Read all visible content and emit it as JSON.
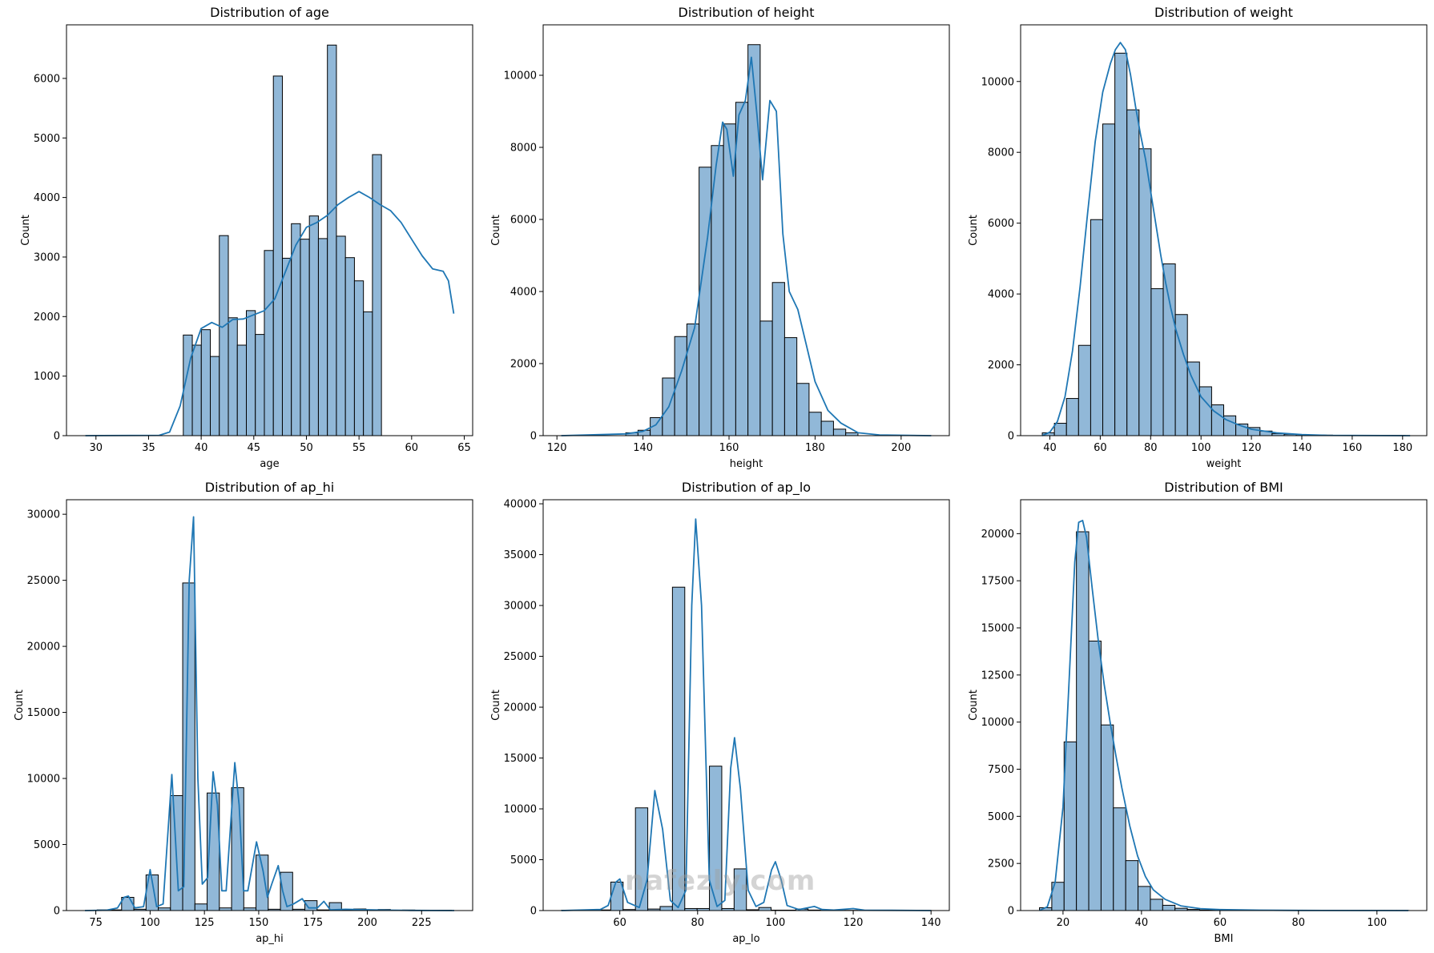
{
  "watermark": "nafezly.com",
  "colors": {
    "bar_fill": "#91b8d8",
    "bar_stroke": "#000000",
    "kde": "#1f77b4"
  },
  "chart_data": [
    {
      "type": "bar",
      "title": "Distribution of age",
      "xlabel": "age",
      "ylabel": "Count",
      "xlim": [
        27.2,
        65.8
      ],
      "ylim": [
        0,
        6900
      ],
      "xticks": [
        30,
        35,
        40,
        45,
        50,
        55,
        60,
        65
      ],
      "yticks": [
        0,
        1000,
        2000,
        3000,
        4000,
        5000,
        6000
      ],
      "bin_start": 38.3,
      "bin_width": 0.856,
      "values": [
        1690,
        1520,
        1780,
        1330,
        3360,
        1980,
        1520,
        2100,
        1700,
        3110,
        6040,
        2980,
        3560,
        3300,
        3690,
        3310,
        6560,
        3350,
        2990,
        2600,
        2080,
        4720
      ],
      "kde": [
        [
          29.0,
          0
        ],
        [
          36.0,
          5
        ],
        [
          37.0,
          60
        ],
        [
          38.0,
          500
        ],
        [
          39.0,
          1300
        ],
        [
          40.0,
          1800
        ],
        [
          41.0,
          1900
        ],
        [
          42.0,
          1820
        ],
        [
          43.0,
          1950
        ],
        [
          44.0,
          1960
        ],
        [
          45.0,
          2030
        ],
        [
          46.0,
          2100
        ],
        [
          47.0,
          2300
        ],
        [
          48.0,
          2750
        ],
        [
          49.0,
          3200
        ],
        [
          50.0,
          3500
        ],
        [
          51.0,
          3580
        ],
        [
          52.0,
          3700
        ],
        [
          53.0,
          3880
        ],
        [
          54.0,
          4000
        ],
        [
          55.0,
          4100
        ],
        [
          56.0,
          4000
        ],
        [
          57.0,
          3880
        ],
        [
          58.0,
          3780
        ],
        [
          59.0,
          3580
        ],
        [
          60.0,
          3300
        ],
        [
          61.0,
          3020
        ],
        [
          62.0,
          2800
        ],
        [
          63.0,
          2760
        ],
        [
          63.5,
          2600
        ],
        [
          64.0,
          2050
        ]
      ]
    },
    {
      "type": "bar",
      "title": "Distribution of height",
      "xlabel": "height",
      "ylabel": "Count",
      "xlim": [
        116.8,
        211.2
      ],
      "ylim": [
        0,
        11400
      ],
      "xticks": [
        120,
        140,
        160,
        180,
        200
      ],
      "yticks": [
        0,
        2000,
        4000,
        6000,
        8000,
        10000
      ],
      "bin_start": 136,
      "bin_width": 2.84,
      "values": [
        80,
        150,
        500,
        1600,
        2750,
        3100,
        7450,
        8050,
        8650,
        9250,
        10850,
        3180,
        4250,
        2720,
        1450,
        650,
        400,
        180,
        80
      ],
      "kde": [
        [
          121,
          0
        ],
        [
          136,
          50
        ],
        [
          140,
          120
        ],
        [
          143,
          300
        ],
        [
          146,
          800
        ],
        [
          149,
          1800
        ],
        [
          152,
          3000
        ],
        [
          155,
          5500
        ],
        [
          157,
          7500
        ],
        [
          158.5,
          8700
        ],
        [
          159.5,
          8500
        ],
        [
          161,
          7200
        ],
        [
          162.3,
          8900
        ],
        [
          163.8,
          9300
        ],
        [
          165.2,
          10500
        ],
        [
          166.5,
          8900
        ],
        [
          167.8,
          7100
        ],
        [
          169.5,
          9300
        ],
        [
          171,
          9000
        ],
        [
          172.5,
          5600
        ],
        [
          174,
          4000
        ],
        [
          176,
          3500
        ],
        [
          178,
          2500
        ],
        [
          180,
          1500
        ],
        [
          183,
          700
        ],
        [
          186,
          350
        ],
        [
          190,
          80
        ],
        [
          195,
          20
        ],
        [
          207,
          0
        ]
      ]
    },
    {
      "type": "bar",
      "title": "Distribution of weight",
      "xlabel": "weight",
      "ylabel": "Count",
      "xlim": [
        28.4,
        189.6
      ],
      "ylim": [
        0,
        11600
      ],
      "xticks": [
        40,
        60,
        80,
        100,
        120,
        140,
        160,
        180
      ],
      "yticks": [
        0,
        2000,
        4000,
        6000,
        8000,
        10000
      ],
      "bin_start": 37,
      "bin_width": 4.8,
      "values": [
        80,
        350,
        1050,
        2550,
        6100,
        8800,
        10800,
        9200,
        8100,
        4150,
        4850,
        3420,
        2080,
        1380,
        870,
        560,
        330,
        230,
        130,
        60,
        40,
        30,
        20,
        15,
        10,
        8,
        5,
        5,
        5,
        5
      ],
      "kde": [
        [
          37,
          0
        ],
        [
          40,
          100
        ],
        [
          43,
          400
        ],
        [
          46,
          1100
        ],
        [
          49,
          2400
        ],
        [
          52,
          4200
        ],
        [
          55,
          6300
        ],
        [
          58,
          8300
        ],
        [
          61,
          9700
        ],
        [
          64,
          10500
        ],
        [
          66,
          10900
        ],
        [
          68,
          11100
        ],
        [
          70,
          10900
        ],
        [
          72,
          10200
        ],
        [
          74,
          9300
        ],
        [
          76,
          8500
        ],
        [
          78,
          7800
        ],
        [
          80,
          6900
        ],
        [
          82,
          6000
        ],
        [
          84,
          5100
        ],
        [
          86,
          4300
        ],
        [
          88,
          3600
        ],
        [
          90,
          3000
        ],
        [
          93,
          2300
        ],
        [
          96,
          1700
        ],
        [
          100,
          1100
        ],
        [
          105,
          700
        ],
        [
          110,
          450
        ],
        [
          115,
          300
        ],
        [
          120,
          180
        ],
        [
          130,
          80
        ],
        [
          140,
          30
        ],
        [
          150,
          10
        ],
        [
          183,
          0
        ]
      ]
    },
    {
      "type": "bar",
      "title": "Distribution of ap_hi",
      "xlabel": "ap_hi",
      "ylabel": "Count",
      "xlim": [
        61.5,
        248.5
      ],
      "ylim": [
        0,
        31100
      ],
      "xticks": [
        75,
        100,
        125,
        150,
        175,
        200,
        225
      ],
      "yticks": [
        0,
        5000,
        10000,
        15000,
        20000,
        25000,
        30000
      ],
      "bin_start": 70,
      "bin_width": 5.625,
      "values": [
        0,
        50,
        50,
        1000,
        100,
        2700,
        200,
        8700,
        24800,
        500,
        8900,
        200,
        9300,
        200,
        4200,
        100,
        2900,
        100,
        750,
        50,
        600,
        50,
        120,
        20,
        80,
        20,
        40,
        20,
        20,
        20
      ],
      "kde": [
        [
          70,
          0
        ],
        [
          80,
          30
        ],
        [
          85,
          200
        ],
        [
          88,
          1000
        ],
        [
          90,
          1100
        ],
        [
          93,
          200
        ],
        [
          97,
          300
        ],
        [
          100,
          3100
        ],
        [
          103,
          300
        ],
        [
          106,
          500
        ],
        [
          110,
          10300
        ],
        [
          113,
          1500
        ],
        [
          115.5,
          1800
        ],
        [
          118,
          25000
        ],
        [
          120,
          29800
        ],
        [
          122,
          10000
        ],
        [
          124,
          2000
        ],
        [
          126.5,
          2500
        ],
        [
          129,
          10500
        ],
        [
          131,
          8000
        ],
        [
          133,
          1500
        ],
        [
          135,
          1500
        ],
        [
          139,
          11200
        ],
        [
          141,
          8000
        ],
        [
          143,
          1500
        ],
        [
          145,
          1500
        ],
        [
          149,
          5200
        ],
        [
          152,
          3000
        ],
        [
          154,
          1000
        ],
        [
          156,
          2000
        ],
        [
          159,
          3400
        ],
        [
          161,
          1500
        ],
        [
          163,
          300
        ],
        [
          166,
          500
        ],
        [
          170,
          900
        ],
        [
          173,
          200
        ],
        [
          177,
          200
        ],
        [
          180,
          700
        ],
        [
          183,
          50
        ],
        [
          190,
          100
        ],
        [
          200,
          60
        ],
        [
          210,
          30
        ],
        [
          220,
          10
        ],
        [
          240,
          0
        ]
      ]
    },
    {
      "type": "bar",
      "title": "Distribution of ap_lo",
      "xlabel": "ap_lo",
      "ylabel": "Count",
      "xlim": [
        40.3,
        144.7
      ],
      "ylim": [
        0,
        40400
      ],
      "xticks": [
        60,
        80,
        100,
        120,
        140
      ],
      "yticks": [
        0,
        5000,
        10000,
        15000,
        20000,
        25000,
        30000,
        35000,
        40000
      ],
      "bin_start": 45,
      "bin_width": 3.17,
      "values": [
        20,
        20,
        40,
        60,
        2800,
        100,
        10100,
        150,
        400,
        31800,
        200,
        200,
        14200,
        200,
        4100,
        80,
        300,
        40,
        40,
        150,
        50,
        20,
        20,
        20,
        10,
        10,
        10,
        10,
        10,
        10
      ],
      "kde": [
        [
          45,
          0
        ],
        [
          55,
          100
        ],
        [
          57,
          500
        ],
        [
          59,
          2800
        ],
        [
          60,
          3100
        ],
        [
          62,
          800
        ],
        [
          65,
          300
        ],
        [
          67,
          3000
        ],
        [
          69,
          11800
        ],
        [
          71,
          8000
        ],
        [
          73,
          1000
        ],
        [
          75,
          300
        ],
        [
          77,
          2000
        ],
        [
          78.5,
          30000
        ],
        [
          79.5,
          38500
        ],
        [
          81,
          30000
        ],
        [
          83,
          3000
        ],
        [
          85,
          400
        ],
        [
          87,
          1000
        ],
        [
          88.5,
          14000
        ],
        [
          89.5,
          17000
        ],
        [
          91,
          12000
        ],
        [
          93,
          2000
        ],
        [
          95,
          400
        ],
        [
          97,
          800
        ],
        [
          99,
          4000
        ],
        [
          100,
          4800
        ],
        [
          101.5,
          3000
        ],
        [
          103,
          500
        ],
        [
          106,
          100
        ],
        [
          110,
          400
        ],
        [
          112,
          100
        ],
        [
          115,
          50
        ],
        [
          120,
          200
        ],
        [
          123,
          30
        ],
        [
          130,
          20
        ],
        [
          140,
          0
        ]
      ]
    },
    {
      "type": "bar",
      "title": "Distribution of BMI",
      "xlabel": "BMI",
      "ylabel": "Count",
      "xlim": [
        9.2,
        112.7
      ],
      "ylim": [
        0,
        21800
      ],
      "xticks": [
        20,
        40,
        60,
        80,
        100
      ],
      "yticks": [
        0,
        2500,
        5000,
        7500,
        10000,
        12500,
        15000,
        17500,
        20000
      ],
      "bin_start": 14,
      "bin_width": 3.14,
      "values": [
        150,
        1500,
        8950,
        20100,
        14300,
        9850,
        5450,
        2650,
        1280,
        600,
        280,
        120,
        60,
        30,
        20,
        10,
        10,
        5,
        5,
        5,
        5,
        5,
        5,
        5,
        5,
        5,
        5,
        5,
        5,
        5
      ],
      "kde": [
        [
          14,
          0
        ],
        [
          16,
          200
        ],
        [
          18,
          1500
        ],
        [
          20,
          5500
        ],
        [
          21.5,
          12000
        ],
        [
          23,
          18500
        ],
        [
          24,
          20600
        ],
        [
          25,
          20700
        ],
        [
          26,
          19800
        ],
        [
          27.5,
          17000
        ],
        [
          29,
          14300
        ],
        [
          30.5,
          12000
        ],
        [
          32,
          10000
        ],
        [
          33.5,
          8200
        ],
        [
          35,
          6500
        ],
        [
          37,
          4500
        ],
        [
          39,
          2900
        ],
        [
          41,
          1800
        ],
        [
          43,
          1100
        ],
        [
          46,
          600
        ],
        [
          50,
          250
        ],
        [
          55,
          100
        ],
        [
          60,
          50
        ],
        [
          70,
          20
        ],
        [
          80,
          10
        ],
        [
          108,
          0
        ]
      ]
    }
  ]
}
